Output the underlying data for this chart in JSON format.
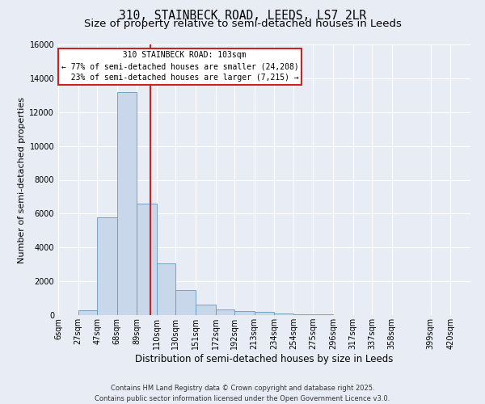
{
  "title": "310, STAINBECK ROAD, LEEDS, LS7 2LR",
  "subtitle": "Size of property relative to semi-detached houses in Leeds",
  "xlabel": "Distribution of semi-detached houses by size in Leeds",
  "ylabel": "Number of semi-detached properties",
  "categories": [
    "6sqm",
    "27sqm",
    "47sqm",
    "68sqm",
    "89sqm",
    "110sqm",
    "130sqm",
    "151sqm",
    "172sqm",
    "192sqm",
    "213sqm",
    "234sqm",
    "254sqm",
    "275sqm",
    "296sqm",
    "317sqm",
    "337sqm",
    "358sqm",
    "399sqm",
    "420sqm"
  ],
  "bar_edges": [
    6,
    27,
    47,
    68,
    89,
    110,
    130,
    151,
    172,
    192,
    213,
    234,
    254,
    275,
    296,
    317,
    337,
    358,
    399,
    420,
    441
  ],
  "bar_values": [
    0,
    300,
    5800,
    13200,
    6600,
    3050,
    1500,
    600,
    350,
    250,
    170,
    100,
    60,
    30,
    0,
    0,
    0,
    0,
    0,
    0
  ],
  "bar_color": "#c8d8ea",
  "bar_edge_color": "#6699bb",
  "highlight_color": "#cc2222",
  "property_size": 103,
  "property_name": "310 STAINBECK ROAD: 103sqm",
  "pct_smaller": 77,
  "count_smaller": 24208,
  "pct_larger": 23,
  "count_larger": 7215,
  "annotation_box_color": "#ffffff",
  "annotation_border_color": "#cc2222",
  "vline_x": 103,
  "ylim": [
    0,
    16000
  ],
  "yticks": [
    0,
    2000,
    4000,
    6000,
    8000,
    10000,
    12000,
    14000,
    16000
  ],
  "background_color": "#e8edf5",
  "axes_bg_color": "#e8edf5",
  "footer_line1": "Contains HM Land Registry data © Crown copyright and database right 2025.",
  "footer_line2": "Contains public sector information licensed under the Open Government Licence v3.0.",
  "title_fontsize": 10.5,
  "subtitle_fontsize": 9.5,
  "xlabel_fontsize": 8.5,
  "ylabel_fontsize": 8,
  "tick_fontsize": 7,
  "annotation_fontsize": 7,
  "footer_fontsize": 6
}
